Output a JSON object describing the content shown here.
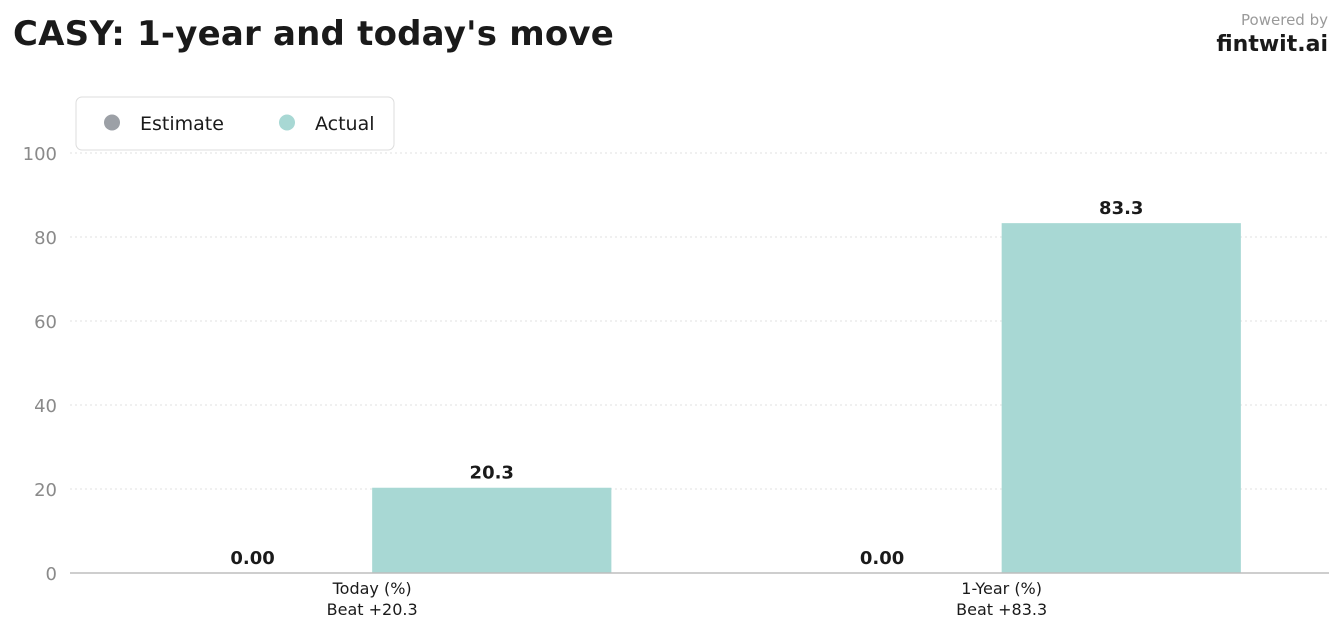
{
  "header": {
    "title": "CASY: 1-year and today's move",
    "powered_by": "Powered by",
    "brand": "fintwit.ai"
  },
  "chart_data": {
    "type": "bar",
    "title": "CASY: 1-year and today's move",
    "xlabel": "",
    "ylabel": "",
    "ylim": [
      0,
      100
    ],
    "yticks": [
      0,
      20,
      40,
      60,
      80,
      100
    ],
    "grid": true,
    "legend_position": "top-left",
    "categories": [
      "Today (%)",
      "1-Year (%)"
    ],
    "sublabels": [
      "Beat +20.3",
      "Beat +83.3"
    ],
    "series": [
      {
        "name": "Estimate",
        "color": "#9ca0a6",
        "values": [
          0.0,
          0.0
        ],
        "labels": [
          "0.00",
          "0.00"
        ]
      },
      {
        "name": "Actual",
        "color": "#a8d8d4",
        "values": [
          20.3,
          83.3
        ],
        "labels": [
          "20.3",
          "83.3"
        ]
      }
    ]
  }
}
